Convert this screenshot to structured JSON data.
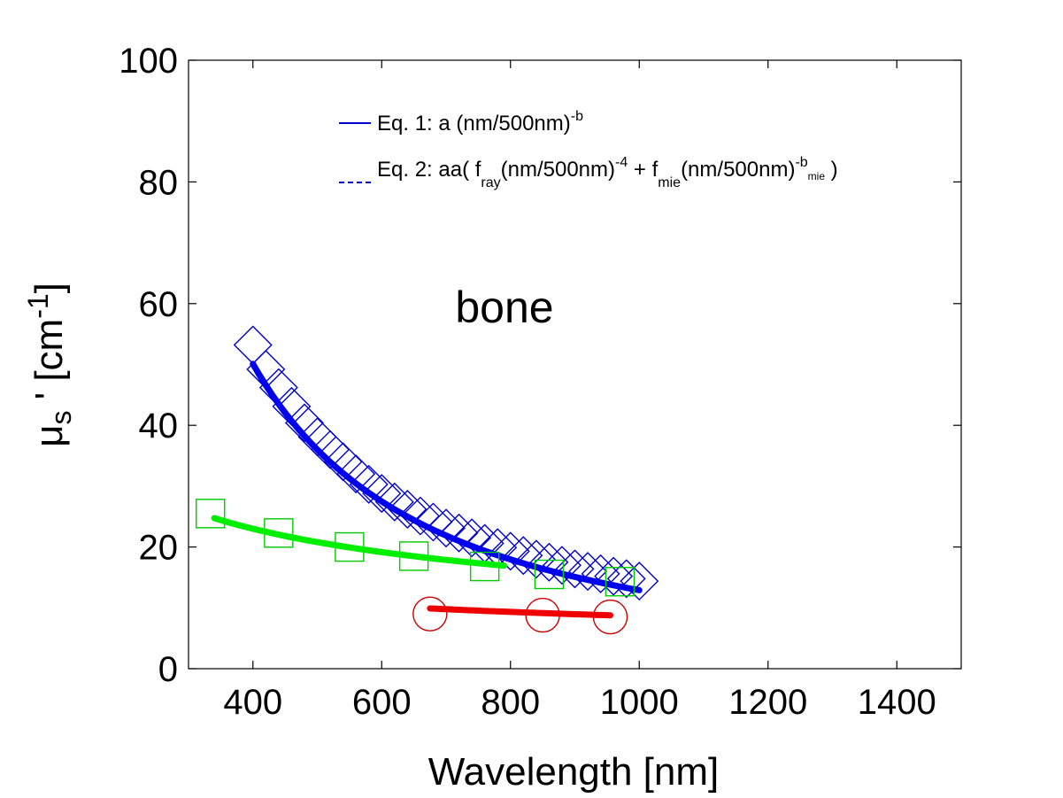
{
  "chart_data": {
    "type": "scatter",
    "xlabel": "Wavelength [nm]",
    "ylabel": {
      "base": "μ",
      "sub": "s",
      "mid": " ' [cm",
      "sup": "-1",
      "end": "]"
    },
    "xlim": [
      300,
      1500
    ],
    "ylim": [
      0,
      100
    ],
    "xticks": [
      400,
      600,
      800,
      1000,
      1200,
      1400
    ],
    "yticks": [
      0,
      20,
      40,
      60,
      80,
      100
    ],
    "grid": false,
    "legend_placement": "top-center",
    "annotation": "bone",
    "legend": [
      {
        "style": "solid",
        "color": "#0000cc",
        "text": "Eq. 1: a (nm/500nm)",
        "sup": "-b"
      },
      {
        "style": "dashed",
        "color": "#0000cc",
        "parts": [
          {
            "t": "Eq. 2: aa( f",
            "k": "n"
          },
          {
            "t": "ray",
            "k": "sub"
          },
          {
            "t": "(nm/500nm)",
            "k": "n"
          },
          {
            "t": "-4",
            "k": "sup"
          },
          {
            "t": " + f",
            "k": "n"
          },
          {
            "t": "mie",
            "k": "sub"
          },
          {
            "t": "(nm/500nm)",
            "k": "n"
          },
          {
            "t": "-b",
            "k": "sup"
          },
          {
            "t": "mie",
            "k": "supsub"
          },
          {
            "t": " )",
            "k": "n"
          }
        ]
      }
    ],
    "series": [
      {
        "marker": "diamond",
        "color": "#0000cc",
        "fit_color": "#0000ee",
        "x": [
          400,
          420,
          440,
          460,
          480,
          500,
          520,
          540,
          560,
          580,
          600,
          620,
          640,
          660,
          680,
          700,
          720,
          740,
          760,
          780,
          800,
          820,
          840,
          860,
          880,
          900,
          920,
          940,
          960,
          980,
          1000
        ],
        "y": [
          53.2,
          49.2,
          46.2,
          43.1,
          40.4,
          38.1,
          36.0,
          34.0,
          32.0,
          30.3,
          28.8,
          27.4,
          26.2,
          25.1,
          24.1,
          23.1,
          22.3,
          21.5,
          20.6,
          19.9,
          19.3,
          18.6,
          18.0,
          17.5,
          17.0,
          16.4,
          16.0,
          15.6,
          15.2,
          14.8,
          14.4
        ],
        "fit": {
          "a": 36.0,
          "b": 1.48,
          "xmin": 400,
          "xmax": 1000
        }
      },
      {
        "marker": "square",
        "color": "#00cc00",
        "fit_color": "#00ee00",
        "x": [
          334,
          440,
          550,
          650,
          760,
          860,
          970
        ],
        "y": [
          25.5,
          22.3,
          20.0,
          18.5,
          16.8,
          15.5,
          14.3
        ],
        "fit": {
          "a": 20.8,
          "b": 0.45,
          "xmin": 340,
          "xmax": 790
        }
      },
      {
        "marker": "circle",
        "color": "#cc0000",
        "fit_color": "#ee0000",
        "x": [
          675,
          850,
          955
        ],
        "y": [
          9.0,
          8.8,
          8.5
        ],
        "fit": {
          "a": 11.0,
          "b": 0.35,
          "xmin": 675,
          "xmax": 955
        }
      }
    ]
  }
}
